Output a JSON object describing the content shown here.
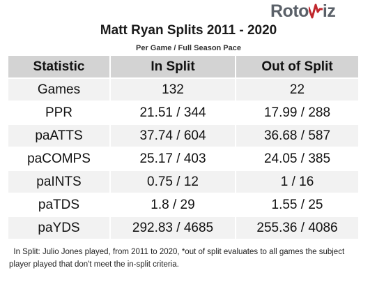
{
  "logo": {
    "part1": "Roto",
    "part2": "iz",
    "accent_color": "#c0272d"
  },
  "title": "Matt Ryan Splits 2011 - 2020",
  "subtitle": "Per Game / Full Season Pace",
  "table": {
    "headers": [
      "Statistic",
      "In Split",
      "Out of Split"
    ],
    "rows": [
      [
        "Games",
        "132",
        "22"
      ],
      [
        "PPR",
        "21.51 / 344",
        "17.99 / 288"
      ],
      [
        "paATTS",
        "37.74 / 604",
        "36.68 / 587"
      ],
      [
        "paCOMPS",
        "25.17 / 403",
        "24.05 / 385"
      ],
      [
        "paINTS",
        "0.75 / 12",
        "1 / 16"
      ],
      [
        "paTDS",
        "1.8 / 29",
        "1.55 / 25"
      ],
      [
        "paYDS",
        "292.83 / 4685",
        "255.36 / 4086"
      ]
    ]
  },
  "footnote": "In Split: Julio Jones played, from 2011 to 2020,  *out of split evaluates to all games the subject player played that don't meet the in-split criteria."
}
